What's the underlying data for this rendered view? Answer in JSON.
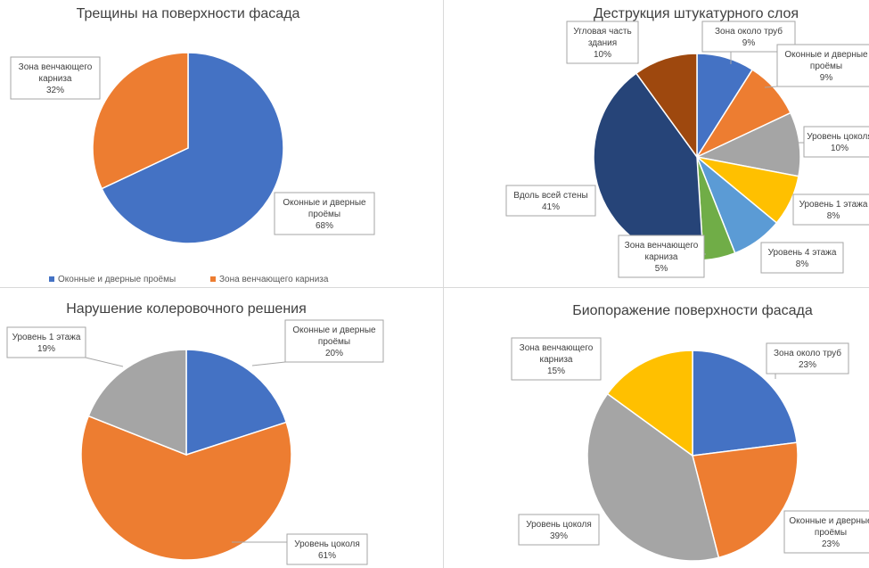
{
  "chart_data": [
    {
      "type": "pie",
      "title": "Трещины на поверхности фасада",
      "slices": [
        {
          "name": "Оконные и дверные проёмы",
          "lines": [
            "Оконные и дверные",
            "проёмы"
          ],
          "value": 68,
          "label": "68%",
          "color": "#4472C4"
        },
        {
          "name": "Зона венчающего карниза",
          "lines": [
            "Зона венчающего",
            "карниза"
          ],
          "value": 32,
          "label": "32%",
          "color": "#ED7D31"
        }
      ],
      "legend": [
        "Оконные и дверные проёмы",
        "Зона венчающего карниза"
      ],
      "legend_position": "bottom"
    },
    {
      "type": "pie",
      "title": "Деструкция штукатурного слоя",
      "slices": [
        {
          "name": "Зона около труб",
          "lines": [
            "Зона около труб"
          ],
          "value": 9,
          "label": "9%",
          "color": "#4472C4"
        },
        {
          "name": "Оконные и дверные проёмы",
          "lines": [
            "Оконные и дверные",
            "проёмы"
          ],
          "value": 9,
          "label": "9%",
          "color": "#ED7D31"
        },
        {
          "name": "Уровень цоколя",
          "lines": [
            "Уровень цоколя"
          ],
          "value": 10,
          "label": "10%",
          "color": "#A5A5A5"
        },
        {
          "name": "Уровень 1 этажа",
          "lines": [
            "Уровень 1 этажа"
          ],
          "value": 8,
          "label": "8%",
          "color": "#FFC000"
        },
        {
          "name": "Уровень 4 этажа",
          "lines": [
            "Уровень 4 этажа"
          ],
          "value": 8,
          "label": "8%",
          "color": "#5B9BD5"
        },
        {
          "name": "Зона венчающего карниза",
          "lines": [
            "Зона венчающего",
            "карниза"
          ],
          "value": 5,
          "label": "5%",
          "color": "#70AD47"
        },
        {
          "name": "Вдоль всей стены",
          "lines": [
            "Вдоль всей стены"
          ],
          "value": 41,
          "label": "41%",
          "color": "#264478"
        },
        {
          "name": "Угловая часть здания",
          "lines": [
            "Угловая часть",
            "здания"
          ],
          "value": 10,
          "label": "10%",
          "color": "#9E480E"
        }
      ]
    },
    {
      "type": "pie",
      "title": "Нарушение колеровочного решения",
      "slices": [
        {
          "name": "Оконные и дверные проёмы",
          "lines": [
            "Оконные и дверные",
            "проёмы"
          ],
          "value": 20,
          "label": "20%",
          "color": "#4472C4"
        },
        {
          "name": "Уровень цоколя",
          "lines": [
            "Уровень цоколя"
          ],
          "value": 61,
          "label": "61%",
          "color": "#ED7D31"
        },
        {
          "name": "Уровень 1 этажа",
          "lines": [
            "Уровень 1 этажа"
          ],
          "value": 19,
          "label": "19%",
          "color": "#A5A5A5"
        }
      ]
    },
    {
      "type": "pie",
      "title": "Биопоражение поверхности фасада",
      "slices": [
        {
          "name": "Зона около труб",
          "lines": [
            "Зона около труб"
          ],
          "value": 23,
          "label": "23%",
          "color": "#4472C4"
        },
        {
          "name": "Оконные и дверные проёмы",
          "lines": [
            "Оконные и дверные",
            "проёмы"
          ],
          "value": 23,
          "label": "23%",
          "color": "#ED7D31"
        },
        {
          "name": "Уровень цоколя",
          "lines": [
            "Уровень цоколя"
          ],
          "value": 39,
          "label": "39%",
          "color": "#A5A5A5"
        },
        {
          "name": "Зона венчающего карниза",
          "lines": [
            "Зона венчающего",
            "карниза"
          ],
          "value": 15,
          "label": "15%",
          "color": "#FFC000"
        }
      ]
    }
  ]
}
